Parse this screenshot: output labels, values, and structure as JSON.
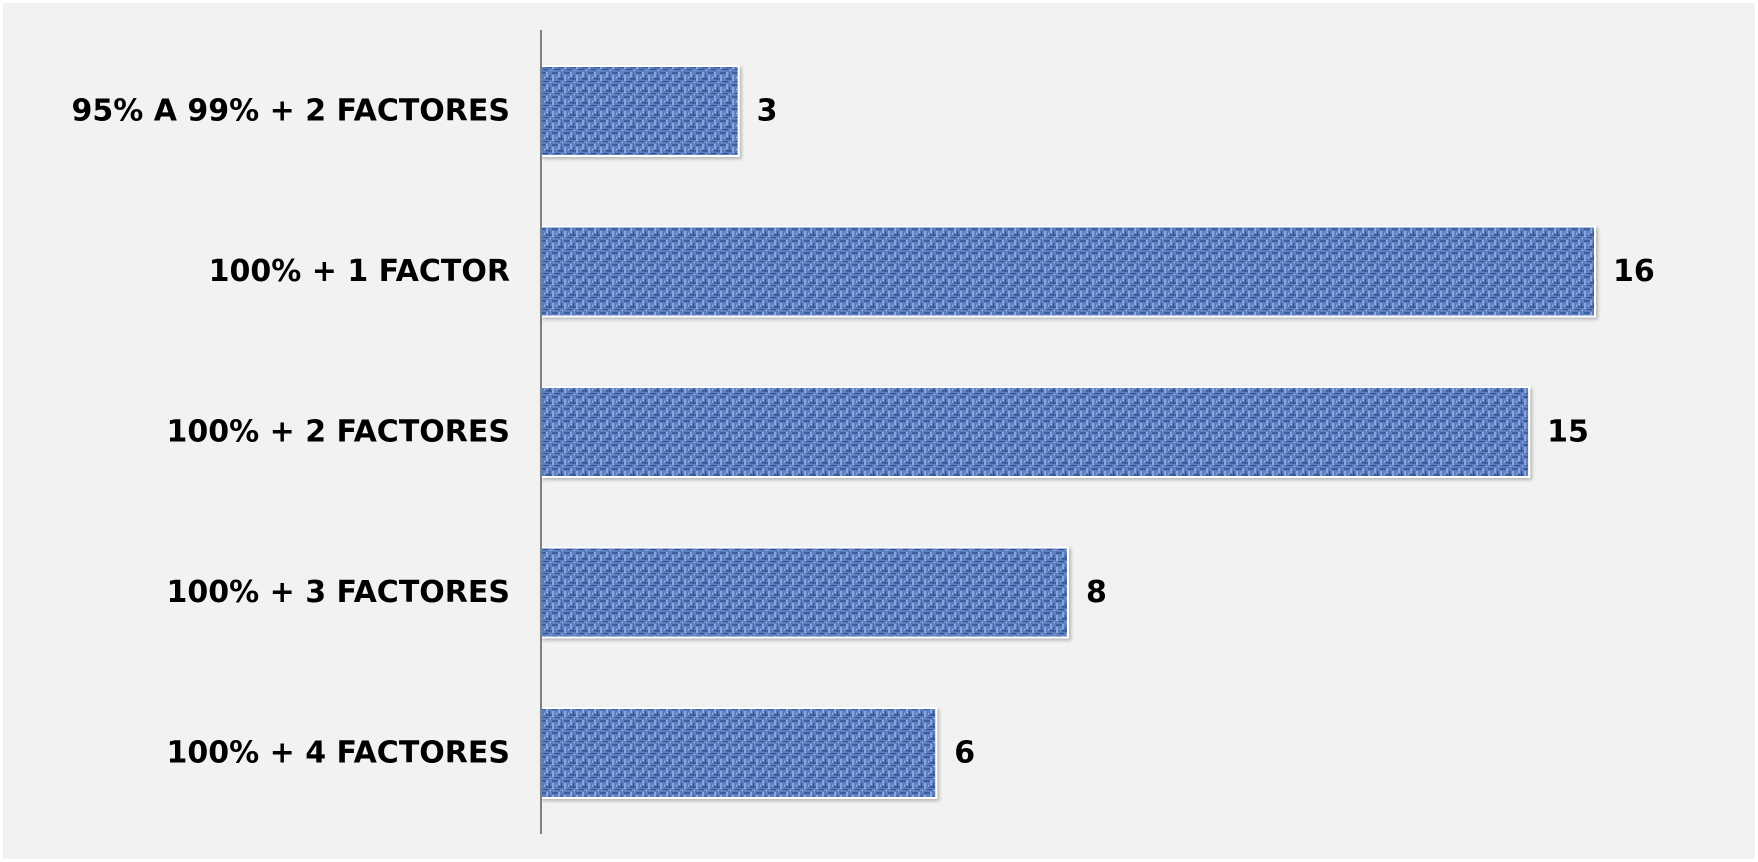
{
  "chart_data": {
    "type": "bar",
    "orientation": "horizontal",
    "categories": [
      "95% A 99% + 2 FACTORES",
      "100%  + 1 FACTOR",
      "100%  + 2 FACTORES",
      "100%  + 3 FACTORES",
      "100%  + 4 FACTORES"
    ],
    "values": [
      3,
      16,
      15,
      8,
      6
    ],
    "data_labels": [
      "3",
      "16",
      "15",
      "8",
      "6"
    ],
    "xlim": [
      0,
      16
    ],
    "grid": false,
    "legend": "none",
    "colors": {
      "bar_fill": "#5b7fc2",
      "bar_dark": "#2f4f8f",
      "bar_light": "#a9bde4",
      "bar_border": "#ffffff",
      "axis_line": "#808080",
      "plot_background": "#f2f2f2",
      "text": "#000000"
    }
  }
}
